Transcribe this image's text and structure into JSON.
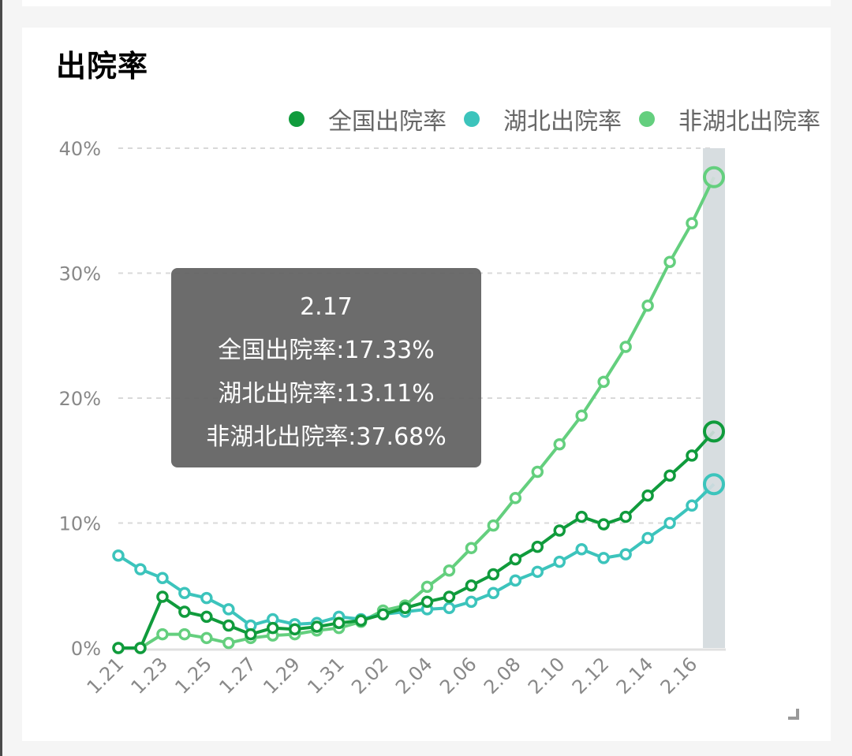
{
  "card": {
    "title": "出院率"
  },
  "legend": [
    {
      "label": "全国出院率",
      "color": "#109b3c"
    },
    {
      "label": "湖北出院率",
      "color": "#3cc4bc"
    },
    {
      "label": "非湖北出院率",
      "color": "#64cf7e"
    }
  ],
  "tooltip": {
    "date": "2.17",
    "line1": "全国出院率:17.33%",
    "line2": "湖北出院率:13.11%",
    "line3": "非湖北出院率:37.68%"
  },
  "colors": {
    "national": "#109b3c",
    "hubei": "#3cc4bc",
    "non_hubei": "#64cf7e",
    "highlight_band": "#d7dde0",
    "tooltip_bg": "#646464"
  },
  "chart_data": {
    "type": "line",
    "title": "出院率",
    "xlabel": "",
    "ylabel": "",
    "ylim": [
      0,
      40
    ],
    "yticks": [
      "0%",
      "10%",
      "20%",
      "30%",
      "40%"
    ],
    "grid": true,
    "legend_position": "top-right",
    "x": [
      "1.21",
      "1.22",
      "1.23",
      "1.24",
      "1.25",
      "1.26",
      "1.27",
      "1.28",
      "1.29",
      "1.30",
      "1.31",
      "2.01",
      "2.02",
      "2.03",
      "2.04",
      "2.05",
      "2.06",
      "2.07",
      "2.08",
      "2.09",
      "2.10",
      "2.11",
      "2.12",
      "2.13",
      "2.14",
      "2.15",
      "2.16",
      "2.17"
    ],
    "xtick_labels": [
      "1.21",
      "1.23",
      "1.25",
      "1.27",
      "1.29",
      "1.31",
      "2.02",
      "2.04",
      "2.06",
      "2.08",
      "2.10",
      "2.12",
      "2.14",
      "2.16"
    ],
    "highlighted_x": "2.17",
    "series": [
      {
        "name": "全国出院率",
        "values": [
          0,
          0,
          4.1,
          2.9,
          2.5,
          1.8,
          1.1,
          1.6,
          1.5,
          1.7,
          2.0,
          2.2,
          2.7,
          3.2,
          3.7,
          4.1,
          5.0,
          5.9,
          7.1,
          8.1,
          9.4,
          10.5,
          9.9,
          10.5,
          12.2,
          13.8,
          15.4,
          17.33
        ]
      },
      {
        "name": "湖北出院率",
        "values": [
          7.4,
          6.3,
          5.6,
          4.4,
          4.0,
          3.1,
          1.8,
          2.3,
          1.9,
          2.0,
          2.5,
          2.3,
          2.7,
          2.9,
          3.1,
          3.2,
          3.7,
          4.4,
          5.4,
          6.1,
          6.9,
          7.9,
          7.2,
          7.5,
          8.8,
          10.0,
          11.4,
          13.11
        ]
      },
      {
        "name": "非湖北出院率",
        "values": [
          0,
          0,
          1.1,
          1.1,
          0.8,
          0.4,
          0.8,
          1.0,
          1.1,
          1.4,
          1.6,
          2.1,
          3.0,
          3.4,
          4.9,
          6.2,
          8.0,
          9.8,
          12.0,
          14.1,
          16.3,
          18.6,
          21.3,
          24.1,
          27.4,
          30.9,
          34.0,
          37.68
        ]
      }
    ]
  }
}
